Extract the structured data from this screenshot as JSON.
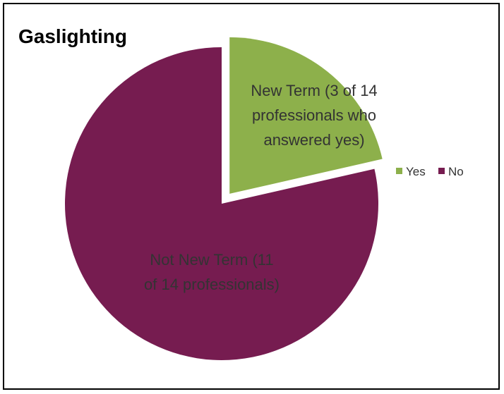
{
  "chart_data": {
    "type": "pie",
    "title": "Gaslighting",
    "categories": [
      "Yes",
      "No"
    ],
    "values": [
      3,
      11
    ],
    "slice_labels": [
      [
        "New Term (3 of 14",
        "professionals who",
        "answered yes)"
      ],
      [
        "Not New Term (11",
        "of 14 professionals)"
      ]
    ],
    "colors": [
      "#8DB04B",
      "#761C50"
    ],
    "exploded": "Yes",
    "legend_position": "right"
  }
}
